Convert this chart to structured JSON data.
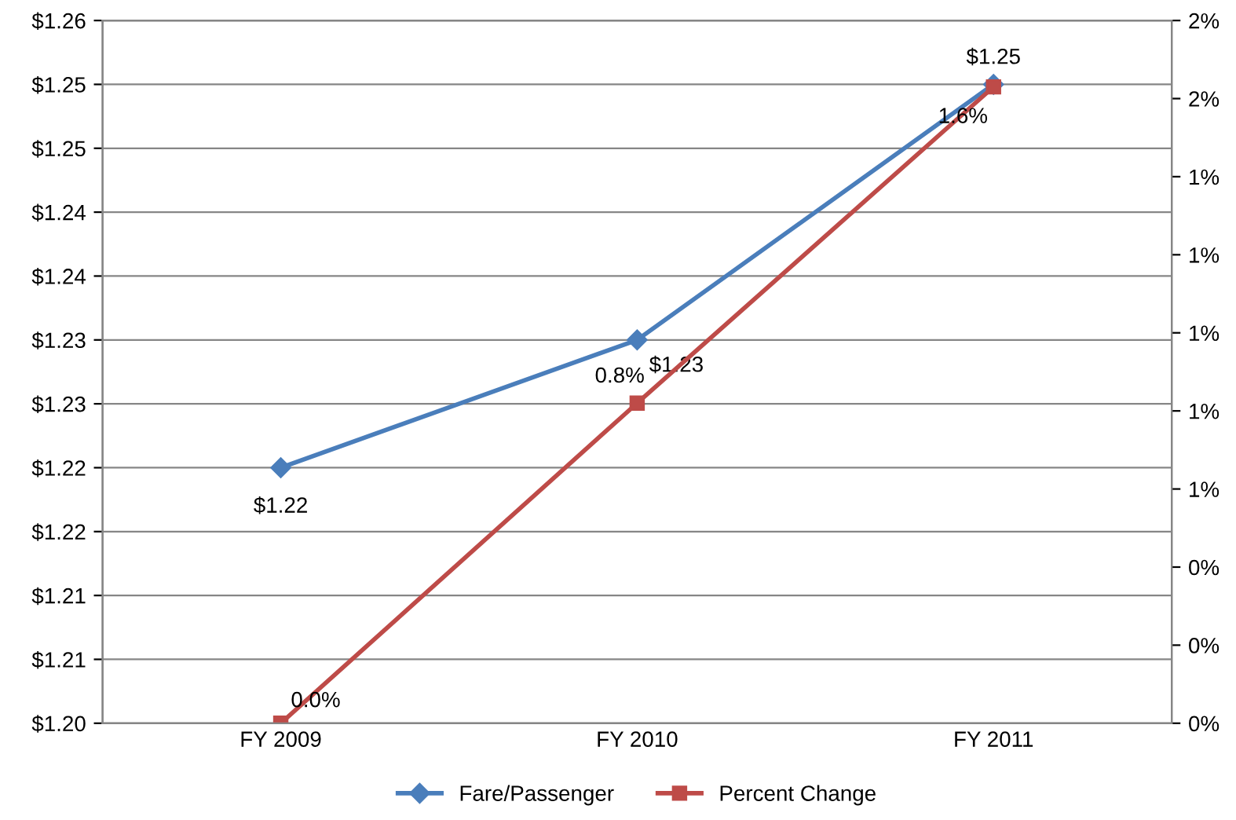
{
  "chart_data": {
    "type": "line",
    "categories": [
      "FY 2009",
      "FY 2010",
      "FY 2011"
    ],
    "series": [
      {
        "name": "Fare/Passenger",
        "color": "#4a7ebb",
        "marker": "diamond",
        "values": [
          1.22,
          1.23,
          1.25
        ],
        "value_labels": [
          "$1.22",
          "$1.23",
          "$1.25"
        ]
      },
      {
        "name": "Percent Change",
        "color": "#be4b48",
        "marker": "square",
        "axis": "y2",
        "values": [
          0.0,
          0.82,
          1.63
        ],
        "value_labels": [
          "0.0%",
          "0.8%",
          "1.6%"
        ]
      }
    ],
    "ylim": [
      1.2,
      1.255
    ],
    "yticks": [
      {
        "value": 1.2,
        "label": "$1.20"
      },
      {
        "value": 1.205,
        "label": "$1.21"
      },
      {
        "value": 1.21,
        "label": "$1.21"
      },
      {
        "value": 1.215,
        "label": "$1.22"
      },
      {
        "value": 1.22,
        "label": "$1.22"
      },
      {
        "value": 1.225,
        "label": "$1.23"
      },
      {
        "value": 1.23,
        "label": "$1.23"
      },
      {
        "value": 1.235,
        "label": "$1.24"
      },
      {
        "value": 1.24,
        "label": "$1.24"
      },
      {
        "value": 1.245,
        "label": "$1.25"
      },
      {
        "value": 1.25,
        "label": "$1.25"
      },
      {
        "value": 1.255,
        "label": "$1.26"
      }
    ],
    "y2lim": [
      0,
      1.8
    ],
    "y2ticks": [
      {
        "value": 0,
        "label": "0%"
      },
      {
        "value": 0.2,
        "label": "0%"
      },
      {
        "value": 0.4,
        "label": "0%"
      },
      {
        "value": 0.6,
        "label": "1%"
      },
      {
        "value": 0.8,
        "label": "1%"
      },
      {
        "value": 1.0,
        "label": "1%"
      },
      {
        "value": 1.2,
        "label": "1%"
      },
      {
        "value": 1.4,
        "label": "1%"
      },
      {
        "value": 1.6,
        "label": "2%"
      },
      {
        "value": 1.8,
        "label": "2%"
      }
    ],
    "grid": "y",
    "legend": "bottom",
    "line_style": "solid"
  }
}
